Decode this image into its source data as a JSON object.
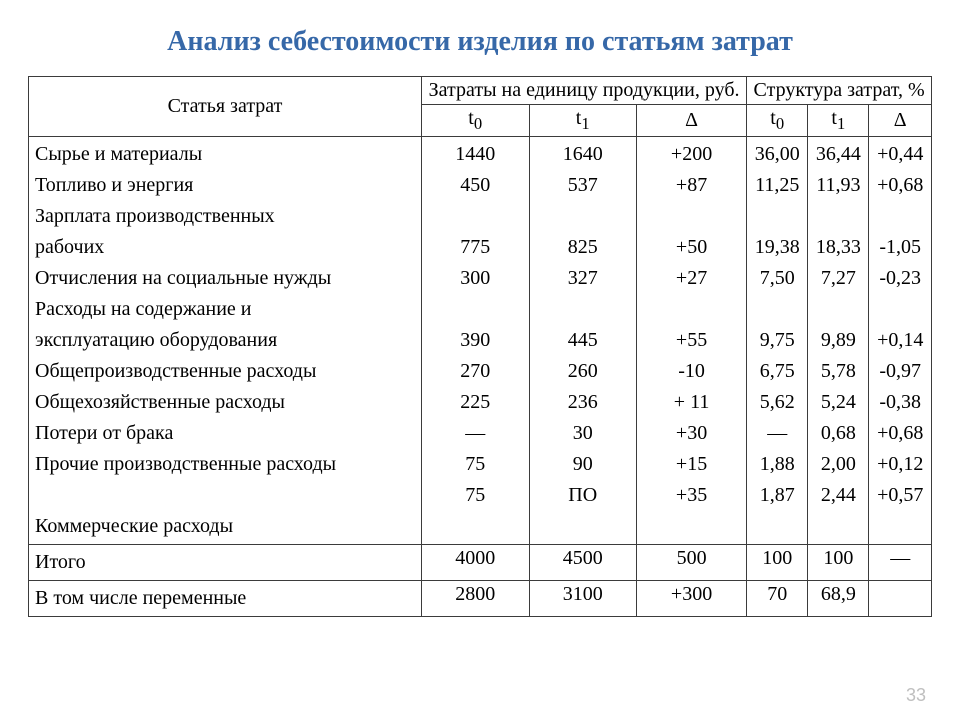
{
  "title": "Анализ себестоимости изделия  по статьям затрат",
  "page_number": "33",
  "colors": {
    "title": "#3668a8",
    "border": "#3b3b3b",
    "text": "#000000",
    "pagenum": "#bfbfbf",
    "background": "#ffffff"
  },
  "table": {
    "type": "table",
    "headers": {
      "col1": "Статья затрат",
      "group2": "Затраты на единицу продукции, руб.",
      "group3": "Структура затрат, %",
      "t0": "t",
      "t0_sub": "0",
      "t1": "t",
      "t1_sub": "1",
      "delta": "Δ"
    },
    "body_names": "Сырье и материалы\nТопливо и энергия\nЗарплата производственных\nрабочих\nОтчисления на социальные нужды\nРасходы на содержание и\nэксплуатацию оборудования\nОбщепроизводственные расходы\nОбщехозяйственные расходы\nПотери от брака\nПрочие производственные расходы\n\nКоммерческие расходы",
    "body_cols": {
      "c_t0": "1440\n450\n\n775\n300\n\n390\n270\n225\n—\n75\n75",
      "c_t1": "1640\n537\n\n825\n327\n\n445\n260\n236\n30\n90\nПО",
      "c_d": "+200\n+87\n\n+50\n+27\n\n+55\n-10\n+ 11\n+30\n+15\n+35",
      "s_t0": "36,00\n11,25\n\n19,38\n7,50\n\n9,75\n6,75\n5,62\n—\n1,88\n1,87",
      "s_t1": "36,44\n11,93\n\n18,33\n7,27\n\n9,89\n5,78\n5,24\n0,68\n2,00\n2,44",
      "s_d": "+0,44\n+0,68\n\n-1,05\n-0,23\n\n+0,14\n-0,97\n-0,38\n+0,68\n+0,12\n+0,57"
    },
    "footer": [
      {
        "name": "Итого",
        "c_t0": "4000",
        "c_t1": "4500",
        "c_d": "500",
        "s_t0": "100",
        "s_t1": "100",
        "s_d": "—"
      },
      {
        "name": "В том числе переменные",
        "c_t0": "2800",
        "c_t1": "3100",
        "c_d": "+300",
        "s_t0": "70",
        "s_t1": "68,9",
        "s_d": ""
      }
    ]
  }
}
